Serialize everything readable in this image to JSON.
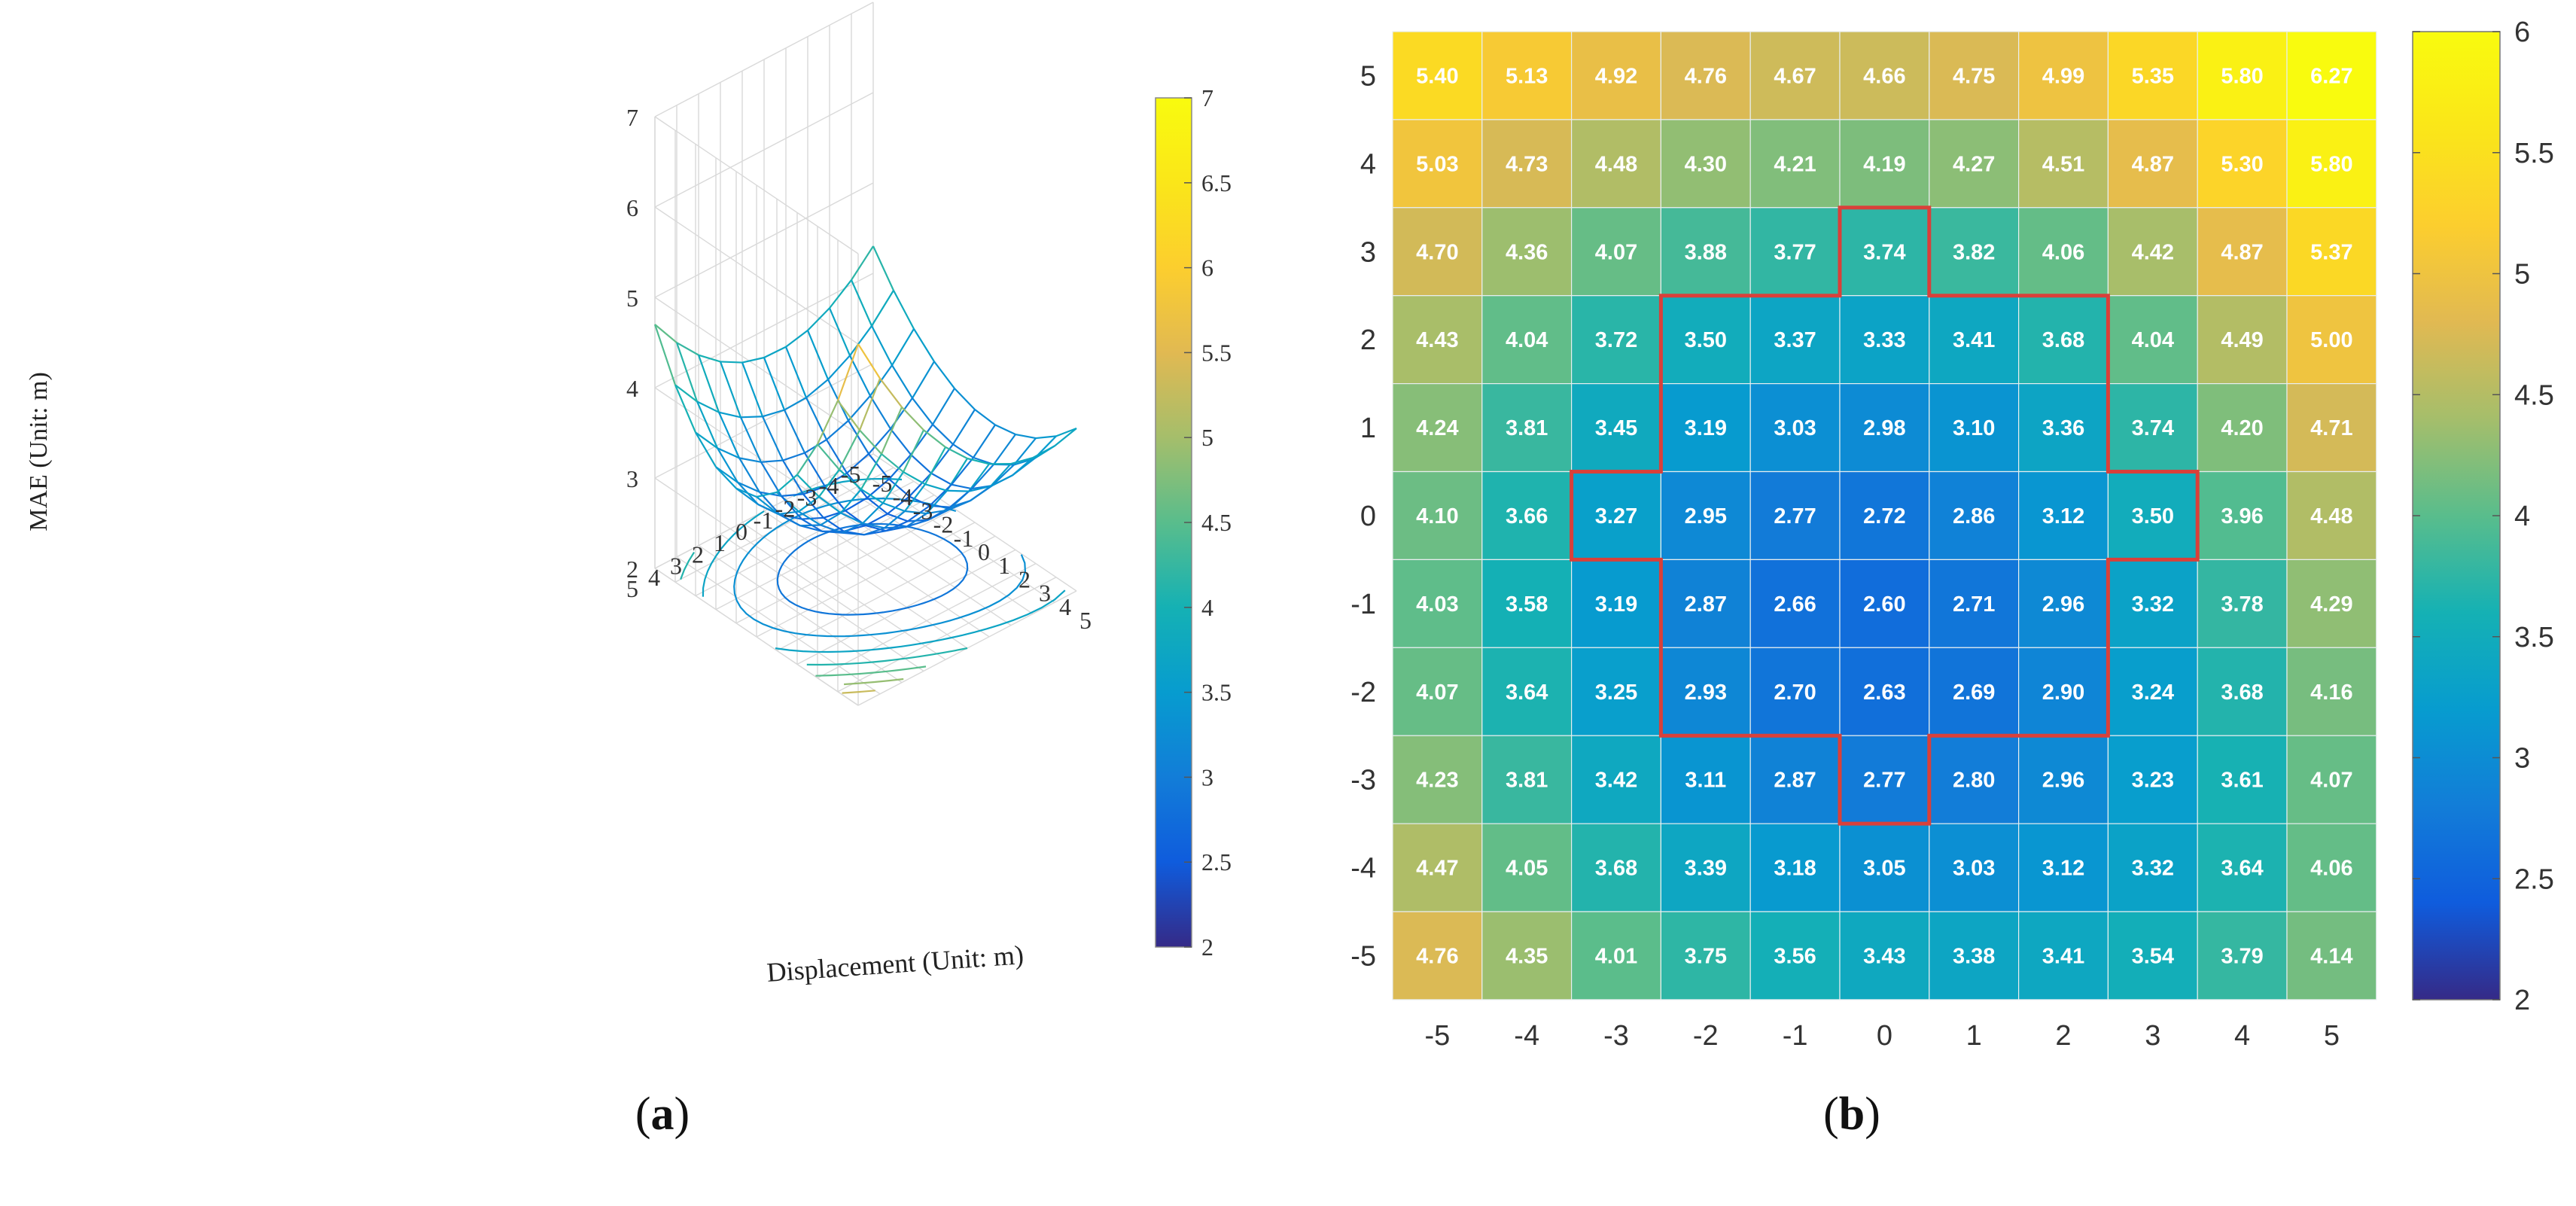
{
  "chart_data": [
    {
      "type": "surface3d",
      "panel_label": "a",
      "zlabel": "MAE (Unit: m)",
      "xlabel": "Displacement (Unit: m)",
      "x_ticks": [
        "-5",
        "-4",
        "-3",
        "-2",
        "-1",
        "0",
        "1",
        "2",
        "3",
        "4",
        "5"
      ],
      "y_ticks": [
        "5",
        "4",
        "3",
        "2",
        "1",
        "0",
        "-1",
        "-2",
        "-3",
        "-4",
        "-5"
      ],
      "z_ticks": [
        "2",
        "3",
        "4",
        "5",
        "6",
        "7"
      ],
      "zlim": [
        2,
        7
      ],
      "colorbar": {
        "min": 2,
        "max": 7,
        "ticks": [
          "2",
          "2.5",
          "3",
          "3.5",
          "4",
          "4.5",
          "5",
          "5.5",
          "6",
          "6.5",
          "7"
        ]
      },
      "surface_note": "Wireframe bowl of MAE over x/y displacement; minimum ~2.6 near (0,-1); contour projection on floor"
    },
    {
      "type": "heatmap",
      "panel_label": "b",
      "x": [
        "-5",
        "-4",
        "-3",
        "-2",
        "-1",
        "0",
        "1",
        "2",
        "3",
        "4",
        "5"
      ],
      "y": [
        "5",
        "4",
        "3",
        "2",
        "1",
        "0",
        "-1",
        "-2",
        "-3",
        "-4",
        "-5"
      ],
      "values": [
        [
          "5.40",
          "5.13",
          "4.92",
          "4.76",
          "4.67",
          "4.66",
          "4.75",
          "4.99",
          "5.35",
          "5.80",
          "6.27"
        ],
        [
          "5.03",
          "4.73",
          "4.48",
          "4.30",
          "4.21",
          "4.19",
          "4.27",
          "4.51",
          "4.87",
          "5.30",
          "5.80"
        ],
        [
          "4.70",
          "4.36",
          "4.07",
          "3.88",
          "3.77",
          "3.74",
          "3.82",
          "4.06",
          "4.42",
          "4.87",
          "5.37"
        ],
        [
          "4.43",
          "4.04",
          "3.72",
          "3.50",
          "3.37",
          "3.33",
          "3.41",
          "3.68",
          "4.04",
          "4.49",
          "5.00"
        ],
        [
          "4.24",
          "3.81",
          "3.45",
          "3.19",
          "3.03",
          "2.98",
          "3.10",
          "3.36",
          "3.74",
          "4.20",
          "4.71"
        ],
        [
          "4.10",
          "3.66",
          "3.27",
          "2.95",
          "2.77",
          "2.72",
          "2.86",
          "3.12",
          "3.50",
          "3.96",
          "4.48"
        ],
        [
          "4.03",
          "3.58",
          "3.19",
          "2.87",
          "2.66",
          "2.60",
          "2.71",
          "2.96",
          "3.32",
          "3.78",
          "4.29"
        ],
        [
          "4.07",
          "3.64",
          "3.25",
          "2.93",
          "2.70",
          "2.63",
          "2.69",
          "2.90",
          "3.24",
          "3.68",
          "4.16"
        ],
        [
          "4.23",
          "3.81",
          "3.42",
          "3.11",
          "2.87",
          "2.77",
          "2.80",
          "2.96",
          "3.23",
          "3.61",
          "4.07"
        ],
        [
          "4.47",
          "4.05",
          "3.68",
          "3.39",
          "3.18",
          "3.05",
          "3.03",
          "3.12",
          "3.32",
          "3.64",
          "4.06"
        ],
        [
          "4.76",
          "4.35",
          "4.01",
          "3.75",
          "3.56",
          "3.43",
          "3.38",
          "3.41",
          "3.54",
          "3.79",
          "4.14"
        ]
      ],
      "colorbar": {
        "min": 2,
        "max": 6,
        "ticks": [
          "2",
          "2.5",
          "3",
          "3.5",
          "4",
          "4.5",
          "5",
          "5.5",
          "6"
        ]
      },
      "highlight_region_note": "Red outline around low-MAE cells near the center",
      "highlight_color": "#d9403a"
    }
  ]
}
